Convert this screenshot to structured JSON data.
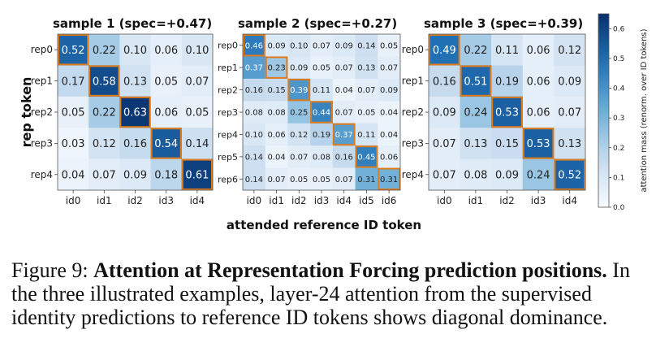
{
  "chart_data": {
    "type": "heatmap",
    "ylabel": "rep token",
    "xlabel": "attended reference ID token",
    "colorbar": {
      "label": "attention mass (renorm. over ID tokens)",
      "ticks": [
        "0.0",
        "0.1",
        "0.2",
        "0.3",
        "0.4",
        "0.5",
        "0.6"
      ],
      "range": [
        0,
        0.65
      ],
      "colormap": "Blues"
    },
    "highlight_color": "#e07b1a",
    "panels": [
      {
        "title": "sample 1   (spec=+0.47)",
        "rows": [
          "rep0",
          "rep1",
          "rep2",
          "rep3",
          "rep4"
        ],
        "cols": [
          "id0",
          "id1",
          "id2",
          "id3",
          "id4"
        ],
        "values": [
          [
            0.52,
            0.22,
            0.1,
            0.06,
            0.1
          ],
          [
            0.17,
            0.58,
            0.13,
            0.05,
            0.07
          ],
          [
            0.05,
            0.22,
            0.63,
            0.06,
            0.05
          ],
          [
            0.03,
            0.12,
            0.16,
            0.54,
            0.14
          ],
          [
            0.04,
            0.07,
            0.09,
            0.18,
            0.61
          ]
        ],
        "labels": [
          [
            "0.52",
            "0.22",
            "0.10",
            "0.06",
            "0.10"
          ],
          [
            "0.17",
            "0.58",
            "0.13",
            "0.05",
            "0.07"
          ],
          [
            "0.05",
            "0.22",
            "0.63",
            "0.06",
            "0.05"
          ],
          [
            "0.03",
            "0.12",
            "0.16",
            "0.54",
            "0.14"
          ],
          [
            "0.04",
            "0.07",
            "0.09",
            "0.18",
            "0.61"
          ]
        ],
        "highlight": [
          [
            0,
            0
          ],
          [
            1,
            1
          ],
          [
            2,
            2
          ],
          [
            3,
            3
          ],
          [
            4,
            4
          ]
        ]
      },
      {
        "title": "sample 2   (spec=+0.27)",
        "rows": [
          "rep0",
          "rep1",
          "rep2",
          "rep3",
          "rep4",
          "rep5",
          "rep6"
        ],
        "cols": [
          "id0",
          "id1",
          "id2",
          "id3",
          "id4",
          "id5",
          "id6"
        ],
        "values": [
          [
            0.46,
            0.09,
            0.1,
            0.07,
            0.09,
            0.14,
            0.05
          ],
          [
            0.37,
            0.23,
            0.09,
            0.05,
            0.07,
            0.13,
            0.07
          ],
          [
            0.16,
            0.15,
            0.39,
            0.11,
            0.04,
            0.07,
            0.09
          ],
          [
            0.08,
            0.08,
            0.25,
            0.44,
            0.07,
            0.05,
            0.04
          ],
          [
            0.1,
            0.06,
            0.12,
            0.19,
            0.37,
            0.11,
            0.04
          ],
          [
            0.14,
            0.04,
            0.07,
            0.08,
            0.16,
            0.45,
            0.06
          ],
          [
            0.14,
            0.07,
            0.05,
            0.05,
            0.07,
            0.31,
            0.31
          ]
        ],
        "labels": [
          [
            "0.46",
            "0.09",
            "0.10",
            "0.07",
            "0.09",
            "0.14",
            "0.05"
          ],
          [
            "0.37",
            "0.23",
            "0.09",
            "0.05",
            "0.07",
            "0.13",
            "0.07"
          ],
          [
            "0.16",
            "0.15",
            "0.39",
            "0.11",
            "0.04",
            "0.07",
            "0.09"
          ],
          [
            "0.08",
            "0.08",
            "0.25",
            "0.44",
            "0.07",
            "0.05",
            "0.04"
          ],
          [
            "0.10",
            "0.06",
            "0.12",
            "0.19",
            "0.37",
            "0.11",
            "0.04"
          ],
          [
            "0.14",
            "0.04",
            "0.07",
            "0.08",
            "0.16",
            "0.45",
            "0.06"
          ],
          [
            "0.14",
            "0.07",
            "0.05",
            "0.05",
            "0.07",
            "0.31",
            "0.31"
          ]
        ],
        "highlight": [
          [
            0,
            0
          ],
          [
            1,
            1
          ],
          [
            2,
            2
          ],
          [
            3,
            3
          ],
          [
            4,
            4
          ],
          [
            5,
            5
          ],
          [
            6,
            6
          ]
        ]
      },
      {
        "title": "sample 3   (spec=+0.39)",
        "rows": [
          "rep0",
          "rep1",
          "rep2",
          "rep3",
          "rep4"
        ],
        "cols": [
          "id0",
          "id1",
          "id2",
          "id3",
          "id4"
        ],
        "values": [
          [
            0.49,
            0.22,
            0.11,
            0.06,
            0.12
          ],
          [
            0.16,
            0.51,
            0.19,
            0.06,
            0.09
          ],
          [
            0.09,
            0.24,
            0.53,
            0.06,
            0.07
          ],
          [
            0.07,
            0.13,
            0.15,
            0.53,
            0.13
          ],
          [
            0.07,
            0.08,
            0.09,
            0.24,
            0.52
          ]
        ],
        "labels": [
          [
            "0.49",
            "0.22",
            "0.11",
            "0.06",
            "0.12"
          ],
          [
            "0.16",
            "0.51",
            "0.19",
            "0.06",
            "0.09"
          ],
          [
            "0.09",
            "0.24",
            "0.53",
            "0.06",
            "0.07"
          ],
          [
            "0.07",
            "0.13",
            "0.15",
            "0.53",
            "0.13"
          ],
          [
            "0.07",
            "0.08",
            "0.09",
            "0.24",
            "0.52"
          ]
        ],
        "highlight": [
          [
            0,
            0
          ],
          [
            1,
            1
          ],
          [
            2,
            2
          ],
          [
            3,
            3
          ],
          [
            4,
            4
          ]
        ]
      }
    ]
  },
  "caption": {
    "label": "Figure 9:",
    "title": "Attention at Representation Forcing prediction positions.",
    "body": "In the three illustrated examples, layer-24 attention from the supervised identity predictions to reference ID tokens shows diagonal dominance."
  }
}
